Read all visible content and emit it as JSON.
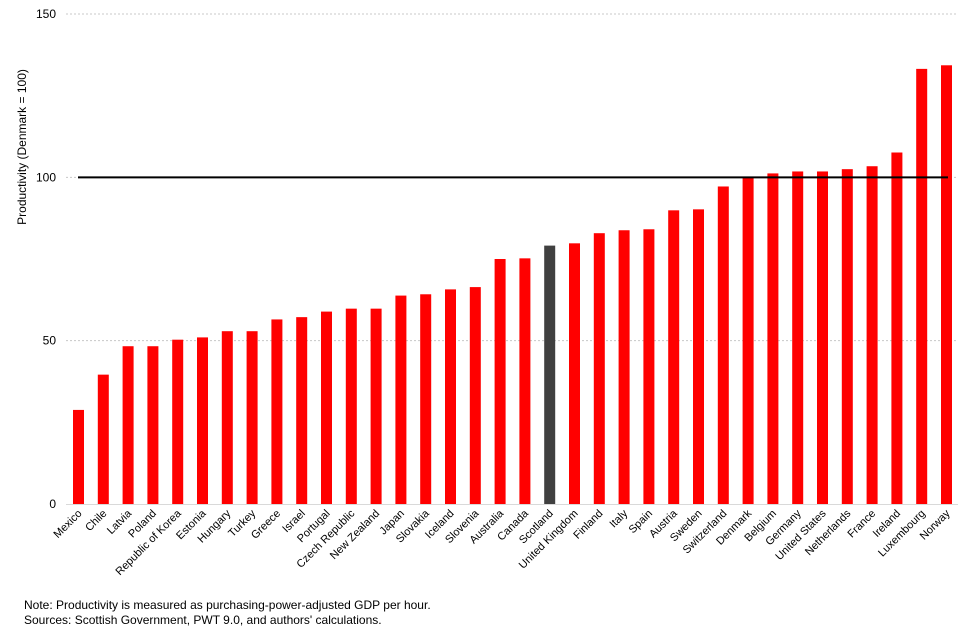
{
  "chart_data": {
    "type": "bar",
    "title": "",
    "xlabel": "",
    "ylabel": "Productivity  (Denmark = 100)",
    "ylim": [
      0,
      150
    ],
    "yticks": [
      0,
      50,
      100,
      150
    ],
    "grid": true,
    "reference_line": 100,
    "colors": {
      "default": "#ff0000",
      "highlight": "#404040",
      "grid": "#c8c8c8",
      "reference": "#000000"
    },
    "highlight_category": "Scotland",
    "categories": [
      "Mexico",
      "Chile",
      "Latvia",
      "Poland",
      "Republic of Korea",
      "Estonia",
      "Hungary",
      "Turkey",
      "Greece",
      "Israel",
      "Portugal",
      "Czech Republic",
      "New Zealand",
      "Japan",
      "Slovakia",
      "Iceland",
      "Slovenia",
      "Australia",
      "Canada",
      "Scotland",
      "United Kingdom",
      "Finland",
      "Italy",
      "Spain",
      "Austria",
      "Sweden",
      "Switzerland",
      "Denmark",
      "Belgium",
      "Germany",
      "United States",
      "Netherlands",
      "France",
      "Ireland",
      "Luxembourg",
      "Norway"
    ],
    "values": [
      28.8,
      39.6,
      48.3,
      48.3,
      50.3,
      51.0,
      52.9,
      52.9,
      56.5,
      57.2,
      58.9,
      59.8,
      59.8,
      63.8,
      64.2,
      65.7,
      66.4,
      75.0,
      75.2,
      79.1,
      79.8,
      82.9,
      83.8,
      84.1,
      89.9,
      90.2,
      97.2,
      100.0,
      101.2,
      101.8,
      101.8,
      102.5,
      103.4,
      107.6,
      133.2,
      134.3
    ]
  },
  "notes": {
    "line1": "Note: Productivity is measured as purchasing-power-adjusted  GDP per hour.",
    "line2": "Sources: Scottish Government,  PWT 9.0, and authors' calculations."
  }
}
